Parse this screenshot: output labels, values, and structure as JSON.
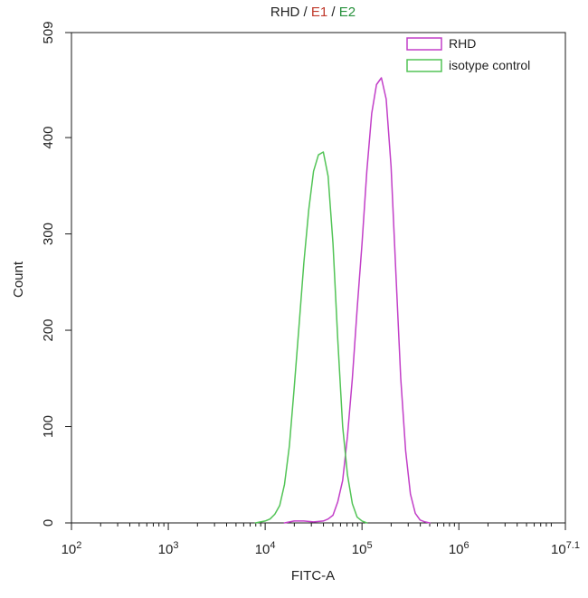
{
  "chart_data": {
    "type": "line",
    "title_parts": [
      {
        "text": "RHD",
        "color": "#222222"
      },
      {
        "text": " / ",
        "color": "#222222"
      },
      {
        "text": "E1",
        "color": "#c0392b"
      },
      {
        "text": " / ",
        "color": "#222222"
      },
      {
        "text": "E2",
        "color": "#27913c"
      }
    ],
    "xlabel": "FITC-A",
    "ylabel": "Count",
    "x_scale": "log",
    "xlim": [
      100,
      12589254
    ],
    "ylim": [
      0,
      509
    ],
    "x_ticks": [
      {
        "value": 100,
        "base": "10",
        "exp": "2"
      },
      {
        "value": 1000,
        "base": "10",
        "exp": "3"
      },
      {
        "value": 10000,
        "base": "10",
        "exp": "4"
      },
      {
        "value": 100000,
        "base": "10",
        "exp": "5"
      },
      {
        "value": 1000000,
        "base": "10",
        "exp": "6"
      },
      {
        "value": 12589254,
        "base": "10",
        "exp": "7.1"
      }
    ],
    "y_ticks": [
      {
        "value": 0,
        "label": "0"
      },
      {
        "value": 100,
        "label": "100"
      },
      {
        "value": 200,
        "label": "200"
      },
      {
        "value": 300,
        "label": "300"
      },
      {
        "value": 400,
        "label": "400"
      },
      {
        "value": 509,
        "label": "509"
      }
    ],
    "grid": false,
    "legend_position": "top-right",
    "series": [
      {
        "name": "RHD",
        "color": "#c23fc8",
        "x": [
          15849,
          19953,
          25119,
          31623,
          39811,
          44668,
          50119,
          56234,
          63096,
          70795,
          79433,
          89125,
          100000,
          112202,
          125893,
          141254,
          158489,
          177828,
          199526,
          223872,
          251189,
          281838,
          316228,
          354813,
          398107,
          446684,
          501187
        ],
        "y": [
          0,
          2,
          2,
          1,
          2,
          4,
          8,
          22,
          44,
          90,
          150,
          222,
          290,
          365,
          425,
          455,
          462,
          440,
          370,
          260,
          150,
          75,
          30,
          10,
          3,
          1,
          0
        ]
      },
      {
        "name": "isotype control",
        "color": "#52c456",
        "x": [
          7943,
          10000,
          11220,
          12589,
          14125,
          15849,
          17783,
          19953,
          22387,
          25119,
          28184,
          31623,
          35481,
          39811,
          44668,
          50119,
          56234,
          63096,
          70795,
          79433,
          89125,
          100000,
          112202
        ],
        "y": [
          0,
          2,
          4,
          9,
          18,
          40,
          80,
          140,
          205,
          270,
          325,
          365,
          382,
          385,
          360,
          290,
          190,
          100,
          50,
          20,
          6,
          2,
          0
        ]
      }
    ]
  }
}
